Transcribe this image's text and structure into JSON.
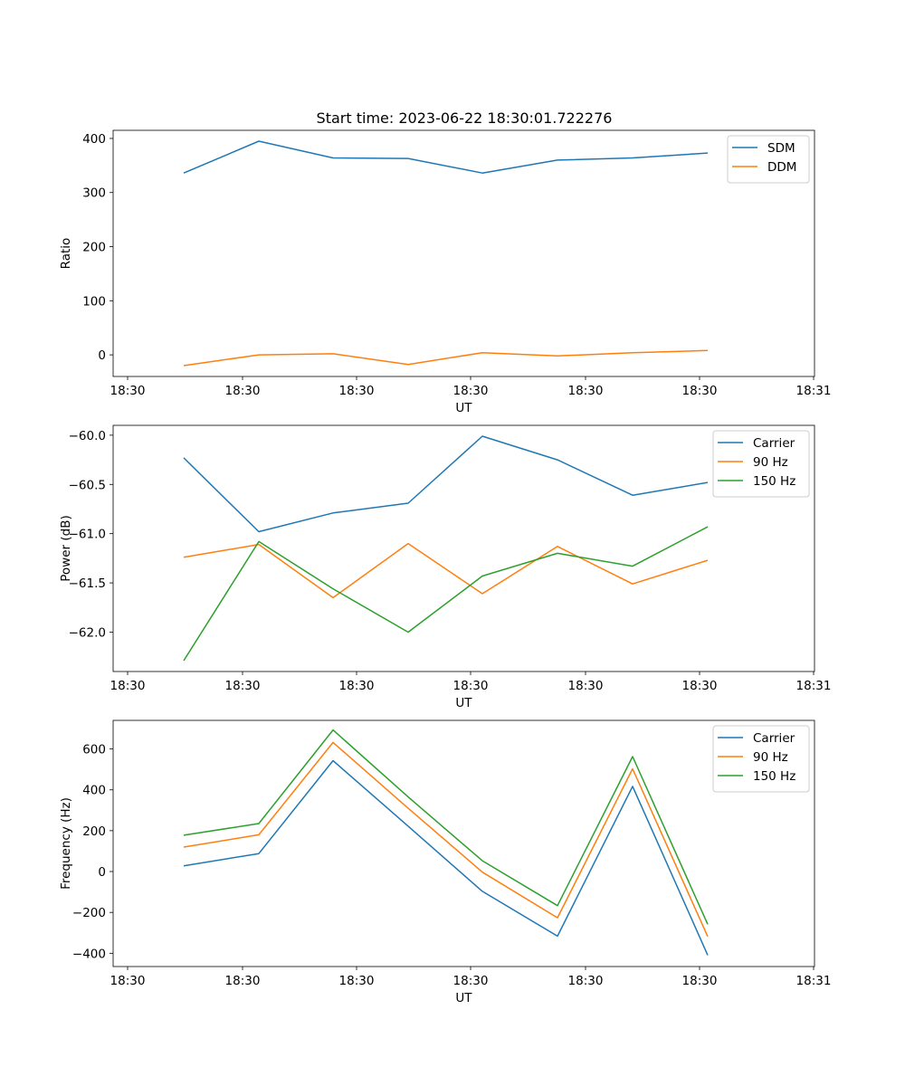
{
  "figure": {
    "title": "Start time: 2023-06-22 18:30:01.722276"
  },
  "chart_data": [
    {
      "type": "line",
      "xlabel": "UT",
      "ylabel": "Ratio",
      "x_tick_labels": [
        "18:30",
        "18:30",
        "18:30",
        "18:30",
        "18:30",
        "18:30",
        "18:31"
      ],
      "y_ticks": [
        0,
        100,
        200,
        300,
        400
      ],
      "y_tick_labels": [
        "0",
        "100",
        "200",
        "300",
        "400"
      ],
      "ylim": [
        -40,
        415
      ],
      "legend_position": "upper-right",
      "series": [
        {
          "name": "SDM",
          "color": "#1f77b4",
          "values": [
            336,
            395,
            364,
            363,
            336,
            360,
            364,
            373
          ]
        },
        {
          "name": "DDM",
          "color": "#ff7f0e",
          "values": [
            -20,
            0,
            2,
            -18,
            4,
            -2,
            4,
            8
          ]
        }
      ]
    },
    {
      "type": "line",
      "xlabel": "UT",
      "ylabel": "Power (dB)",
      "x_tick_labels": [
        "18:30",
        "18:30",
        "18:30",
        "18:30",
        "18:30",
        "18:30",
        "18:31"
      ],
      "y_ticks": [
        -62.0,
        -61.5,
        -61.0,
        -60.5,
        -60.0
      ],
      "y_tick_labels": [
        "−62.0",
        "−61.5",
        "−61.0",
        "−60.5",
        "−60.0"
      ],
      "ylim": [
        -62.4,
        -59.9
      ],
      "legend_position": "upper-right",
      "series": [
        {
          "name": "Carrier",
          "color": "#1f77b4",
          "values": [
            -60.23,
            -60.98,
            -60.79,
            -60.69,
            -60.01,
            -60.25,
            -60.61,
            -60.48
          ]
        },
        {
          "name": "90 Hz",
          "color": "#ff7f0e",
          "values": [
            -61.24,
            -61.11,
            -61.65,
            -61.1,
            -61.61,
            -61.13,
            -61.51,
            -61.27
          ]
        },
        {
          "name": "150 Hz",
          "color": "#2ca02c",
          "values": [
            -62.29,
            -61.08,
            -61.56,
            -62.0,
            -61.43,
            -61.2,
            -61.33,
            -60.93
          ]
        }
      ]
    },
    {
      "type": "line",
      "xlabel": "UT",
      "ylabel": "Frequency (Hz)",
      "x_tick_labels": [
        "18:30",
        "18:30",
        "18:30",
        "18:30",
        "18:30",
        "18:30",
        "18:31"
      ],
      "y_ticks": [
        -400,
        -200,
        0,
        200,
        400,
        600
      ],
      "y_tick_labels": [
        "−400",
        "−200",
        "0",
        "200",
        "400",
        "600"
      ],
      "ylim": [
        -465,
        740
      ],
      "legend_position": "upper-right",
      "series": [
        {
          "name": "Carrier",
          "color": "#1f77b4",
          "values": [
            28,
            88,
            543,
            222,
            -97,
            -316,
            417,
            -409
          ]
        },
        {
          "name": "90 Hz",
          "color": "#ff7f0e",
          "values": [
            120,
            180,
            632,
            310,
            -3,
            -226,
            503,
            -318
          ]
        },
        {
          "name": "150 Hz",
          "color": "#2ca02c",
          "values": [
            178,
            235,
            693,
            365,
            53,
            -167,
            563,
            -258
          ]
        }
      ]
    }
  ]
}
